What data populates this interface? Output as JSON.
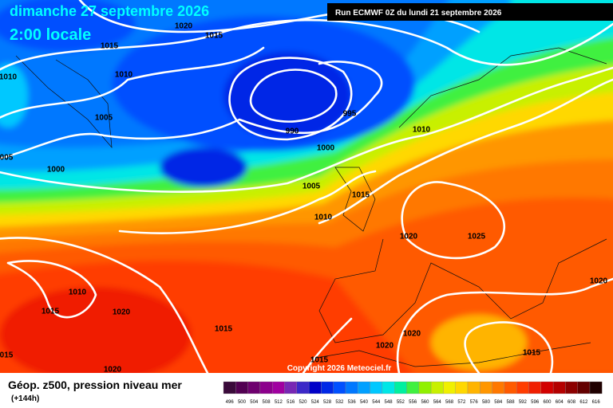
{
  "header": {
    "date": "dimanche 27 septembre 2026",
    "time": "2:00 locale",
    "run": "Run ECMWF 0Z du lundi 21 septembre 2026"
  },
  "map": {
    "isobar_labels": [
      "1020",
      "1015",
      "1015",
      "1010",
      "1010",
      "1005",
      "005",
      "1000",
      "995",
      "990",
      "1000",
      "1010",
      "1005",
      "1015",
      "1010",
      "1020",
      "1025",
      "1010",
      "1015",
      "1020",
      "1015",
      "1020",
      "1020",
      "1020",
      "1015",
      "1015",
      "1020",
      "015"
    ]
  },
  "footer": {
    "copyright": "Copyright 2026 Meteociel.fr",
    "title": "Géop. z500, pression niveau mer",
    "lead": "(+144h)"
  },
  "scale": {
    "values": [
      496,
      500,
      504,
      508,
      512,
      516,
      520,
      524,
      528,
      532,
      536,
      540,
      544,
      548,
      552,
      556,
      560,
      564,
      568,
      572,
      576,
      580,
      584,
      588,
      592,
      596,
      600,
      604,
      608,
      612,
      616
    ],
    "colors": [
      "#3a0a3a",
      "#520052",
      "#6e006e",
      "#8c008c",
      "#a000a0",
      "#7828b4",
      "#3c28c8",
      "#0000c8",
      "#0028e6",
      "#0050ff",
      "#0078ff",
      "#00a0ff",
      "#00c8ff",
      "#00e6e6",
      "#00f0a0",
      "#40f040",
      "#90f000",
      "#c8f000",
      "#f0f000",
      "#ffd800",
      "#ffb400",
      "#ff9600",
      "#ff7800",
      "#ff5a00",
      "#ff3c00",
      "#f01e00",
      "#d20000",
      "#b40000",
      "#8c0000",
      "#640000",
      "#1e0000"
    ]
  }
}
